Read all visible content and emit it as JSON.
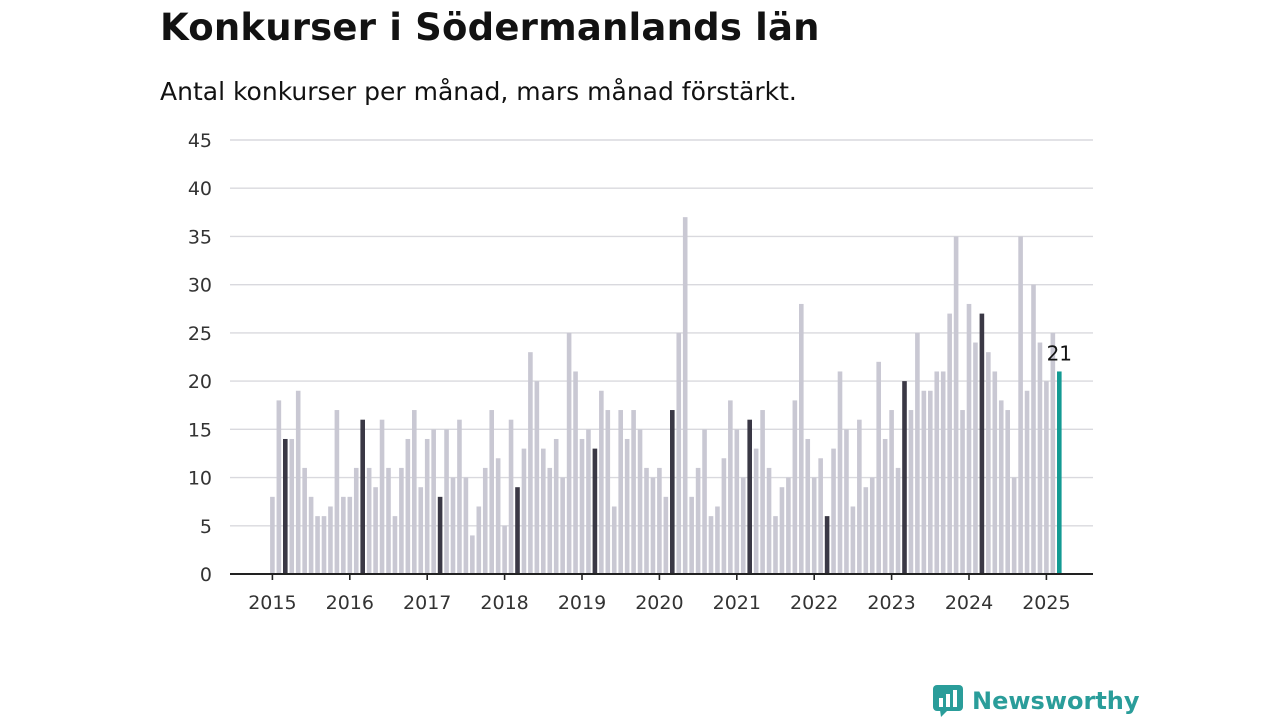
{
  "title": "Konkurser i Södermanlands län",
  "subtitle": "Antal konkurser per månad, mars månad förstärkt.",
  "brand": {
    "name": "Newsworthy",
    "icon": "newsworthy-logo-icon",
    "color": "#2a9d9a"
  },
  "colors": {
    "bar": "#c9c8d3",
    "highlight": "#3a3845",
    "latest": "#139a93",
    "grid": "#d9d9de",
    "axis": "#222222"
  },
  "chart_data": {
    "type": "bar",
    "title": "Konkurser i Södermanlands län",
    "subtitle": "Antal konkurser per månad, mars månad förstärkt.",
    "start": "2015-01",
    "ylim": [
      0,
      45
    ],
    "yticks": [
      0,
      5,
      10,
      15,
      20,
      25,
      30,
      35,
      40,
      45
    ],
    "xticks": [
      "2015",
      "2016",
      "2017",
      "2018",
      "2019",
      "2020",
      "2021",
      "2022",
      "2023",
      "2024",
      "2025"
    ],
    "grid": true,
    "highlight_month": "03",
    "annotation": {
      "month": "2025-03",
      "value": 21,
      "label": "21"
    },
    "values": [
      8,
      18,
      14,
      14,
      19,
      11,
      8,
      6,
      6,
      7,
      17,
      8,
      8,
      11,
      16,
      11,
      9,
      16,
      11,
      6,
      11,
      14,
      17,
      9,
      14,
      15,
      8,
      15,
      10,
      16,
      10,
      4,
      7,
      11,
      17,
      12,
      5,
      16,
      9,
      13,
      23,
      20,
      13,
      11,
      14,
      10,
      25,
      21,
      14,
      15,
      13,
      19,
      17,
      7,
      17,
      14,
      17,
      15,
      11,
      10,
      11,
      8,
      17,
      25,
      37,
      8,
      11,
      15,
      6,
      7,
      12,
      18,
      15,
      10,
      16,
      13,
      17,
      11,
      6,
      9,
      10,
      18,
      28,
      14,
      10,
      12,
      6,
      13,
      21,
      15,
      7,
      16,
      9,
      10,
      22,
      14,
      17,
      11,
      20,
      17,
      25,
      19,
      19,
      21,
      21,
      27,
      35,
      17,
      28,
      24,
      27,
      23,
      21,
      18,
      17,
      10,
      35,
      19,
      30,
      24,
      20,
      25,
      21
    ]
  }
}
